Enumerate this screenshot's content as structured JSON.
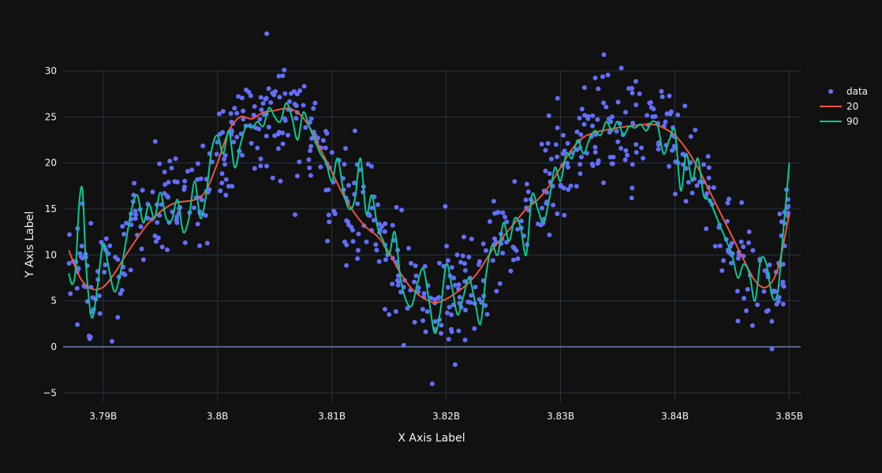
{
  "chart_data": {
    "type": "scatter",
    "xlabel": "X Axis Label",
    "ylabel": "Y Axis Label",
    "xlim": [
      3786500000,
      3851000000
    ],
    "ylim": [
      -6,
      30
    ],
    "x_ticks": [
      3790000000,
      3800000000,
      3810000000,
      3820000000,
      3830000000,
      3840000000,
      3850000000
    ],
    "x_tick_labels": [
      "3.79B",
      "3.8B",
      "3.81B",
      "3.82B",
      "3.83B",
      "3.84B",
      "3.85B"
    ],
    "y_ticks": [
      -5,
      0,
      5,
      10,
      15,
      20,
      25,
      30
    ],
    "y_tick_labels": [
      "−5",
      "0",
      "5",
      "10",
      "15",
      "20",
      "25",
      "30"
    ],
    "grid": true,
    "legend_position": "top-right",
    "legend": [
      {
        "name": "data",
        "kind": "marker",
        "color": "#636efa"
      },
      {
        "name": "20",
        "kind": "line",
        "color": "#ef553b"
      },
      {
        "name": "90",
        "kind": "line",
        "color": "#00cc96"
      }
    ],
    "series": [
      {
        "name": "data",
        "mode": "markers",
        "color": "#636efa",
        "generator": {
          "x_start": 3787000000,
          "x_end": 3850000000,
          "count": 700,
          "base": "smooth curve 20",
          "noise_sd": 3.2
        }
      },
      {
        "name": "20",
        "mode": "lines",
        "color": "#ef553b",
        "x": [
          3787000000,
          3788000000,
          3789000000,
          3790000000,
          3791000000,
          3792000000,
          3794000000,
          3796000000,
          3798000000,
          3799000000,
          3800000000,
          3801000000,
          3802000000,
          3803000000,
          3804000000,
          3805000000,
          3806000000,
          3807000000,
          3808000000,
          3809000000,
          3810000000,
          3811000000,
          3812000000,
          3813000000,
          3814000000,
          3815000000,
          3816000000,
          3817000000,
          3818000000,
          3819000000,
          3820000000,
          3821000000,
          3822000000,
          3823000000,
          3824000000,
          3825000000,
          3826000000,
          3827000000,
          3828000000,
          3829000000,
          3830000000,
          3831000000,
          3832000000,
          3833000000,
          3834000000,
          3836000000,
          3838000000,
          3839000000,
          3840000000,
          3841000000,
          3842000000,
          3843000000,
          3844000000,
          3845000000,
          3846000000,
          3847000000,
          3848000000,
          3849000000,
          3850000000
        ],
        "y": [
          10.5,
          7.5,
          6.3,
          6.5,
          8.0,
          10.0,
          13.5,
          15.5,
          16.0,
          17.0,
          20.0,
          23.5,
          25.0,
          24.8,
          25.5,
          25.7,
          25.9,
          25.5,
          24.0,
          21.5,
          19.0,
          16.5,
          14.5,
          13.0,
          12.0,
          10.3,
          8.0,
          6.3,
          5.3,
          4.8,
          5.2,
          6.0,
          7.0,
          8.5,
          10.5,
          12.0,
          13.5,
          15.0,
          16.0,
          17.5,
          19.5,
          21.5,
          22.8,
          23.3,
          23.6,
          24.0,
          24.2,
          23.8,
          23.0,
          21.5,
          19.5,
          17.0,
          14.5,
          12.0,
          9.5,
          7.2,
          6.5,
          8.5,
          14.5
        ]
      },
      {
        "name": "90",
        "mode": "lines",
        "color": "#00cc96",
        "x": [
          3787000000,
          3787300000,
          3787600000,
          3787900000,
          3788200000,
          3788500000,
          3789000000,
          3789500000,
          3790000000,
          3790500000,
          3791000000,
          3791500000,
          3792000000,
          3792500000,
          3793000000,
          3793500000,
          3794000000,
          3794500000,
          3795000000,
          3795500000,
          3796000000,
          3796500000,
          3797000000,
          3797500000,
          3798000000,
          3798500000,
          3799000000,
          3799500000,
          3800000000,
          3800500000,
          3801000000,
          3801500000,
          3802000000,
          3802500000,
          3803000000,
          3803500000,
          3804000000,
          3804500000,
          3805000000,
          3805500000,
          3806000000,
          3806500000,
          3807000000,
          3807500000,
          3808000000,
          3808500000,
          3809000000,
          3809500000,
          3810000000,
          3810500000,
          3811000000,
          3811500000,
          3812000000,
          3812500000,
          3813000000,
          3813500000,
          3814000000,
          3814500000,
          3815000000,
          3815500000,
          3816000000,
          3816500000,
          3817000000,
          3817500000,
          3818000000,
          3818500000,
          3819000000,
          3819500000,
          3820000000,
          3820500000,
          3821000000,
          3821500000,
          3822000000,
          3822500000,
          3823000000,
          3823500000,
          3824000000,
          3824500000,
          3825000000,
          3825500000,
          3826000000,
          3826500000,
          3827000000,
          3827500000,
          3828000000,
          3828500000,
          3829000000,
          3829500000,
          3830000000,
          3830500000,
          3831000000,
          3831500000,
          3832000000,
          3832500000,
          3833000000,
          3833500000,
          3834000000,
          3834500000,
          3835000000,
          3835500000,
          3836000000,
          3836500000,
          3837000000,
          3837500000,
          3838000000,
          3838500000,
          3839000000,
          3839500000,
          3840000000,
          3840500000,
          3841000000,
          3841500000,
          3842000000,
          3842500000,
          3843000000,
          3843500000,
          3844000000,
          3844500000,
          3845000000,
          3845500000,
          3846000000,
          3846500000,
          3847000000,
          3847500000,
          3848000000,
          3848500000,
          3849000000,
          3849500000,
          3850000000
        ],
        "y": [
          8.0,
          6.8,
          8.5,
          15.5,
          17.0,
          9.0,
          3.2,
          6.5,
          11.2,
          8.5,
          6.0,
          8.0,
          11.5,
          15.0,
          16.5,
          13.5,
          15.5,
          14.0,
          16.8,
          14.0,
          13.8,
          16.0,
          12.5,
          14.0,
          18.0,
          14.0,
          16.5,
          21.5,
          23.0,
          21.0,
          23.5,
          19.5,
          22.0,
          24.0,
          23.8,
          24.5,
          24.0,
          26.0,
          25.0,
          24.5,
          26.5,
          25.0,
          22.5,
          25.5,
          24.0,
          22.5,
          21.0,
          20.0,
          18.0,
          20.5,
          17.0,
          15.0,
          16.0,
          20.5,
          14.5,
          16.5,
          13.0,
          11.5,
          10.0,
          12.5,
          7.5,
          5.0,
          4.5,
          7.0,
          8.5,
          5.0,
          1.5,
          4.0,
          9.0,
          6.5,
          3.5,
          5.5,
          7.5,
          5.0,
          2.5,
          8.0,
          11.0,
          10.0,
          13.5,
          11.5,
          14.0,
          13.0,
          10.0,
          16.5,
          15.0,
          13.5,
          16.0,
          19.5,
          18.0,
          21.0,
          20.5,
          22.5,
          21.0,
          22.5,
          23.5,
          23.0,
          24.5,
          23.5,
          24.5,
          23.0,
          24.0,
          23.8,
          24.2,
          23.5,
          24.5,
          24.0,
          21.0,
          22.5,
          23.5,
          17.0,
          21.0,
          18.0,
          20.5,
          16.5,
          16.0,
          14.5,
          13.0,
          11.5,
          10.0,
          7.5,
          9.0,
          8.0,
          5.0,
          9.5,
          9.0,
          5.5,
          6.0,
          13.0,
          20.0
        ]
      }
    ]
  }
}
